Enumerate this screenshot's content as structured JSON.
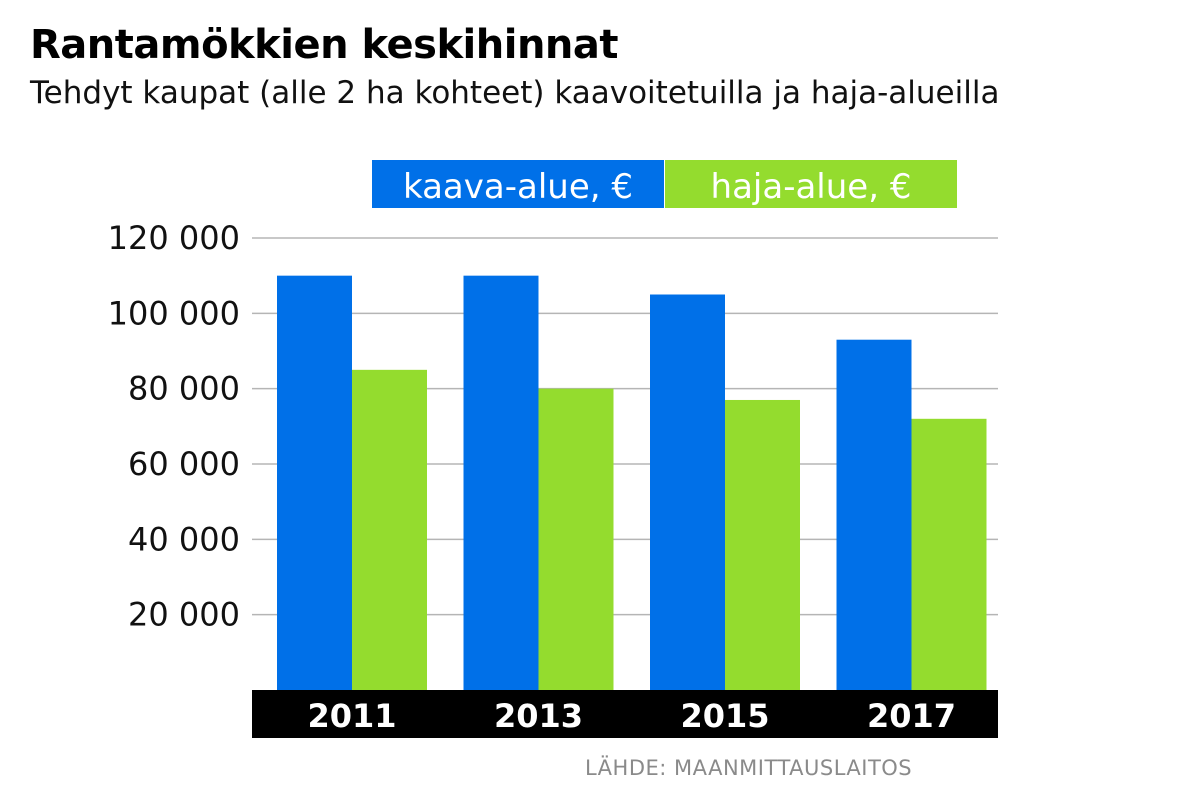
{
  "chart_data": {
    "type": "bar",
    "title": "Rantamökkien keskihinnat",
    "subtitle": "Tehdyt kaupat (alle 2 ha kohteet) kaavoitetuilla ja haja-alueilla",
    "categories": [
      "2011",
      "2013",
      "2015",
      "2017"
    ],
    "series": [
      {
        "name": "kaava-alue, €",
        "color": "#0070e8",
        "values": [
          110000,
          110000,
          105000,
          93000
        ]
      },
      {
        "name": "haja-alue, €",
        "color": "#94dc2e",
        "values": [
          85000,
          80000,
          77000,
          72000
        ]
      }
    ],
    "ylim": [
      0,
      120000
    ],
    "yticks": [
      "20 000",
      "40 000",
      "60 000",
      "80 000",
      "100 000",
      "120 000"
    ],
    "ytick_values": [
      20000,
      40000,
      60000,
      80000,
      100000,
      120000
    ],
    "grid": true,
    "legend_position": "top",
    "source": "LÄHDE: MAANMITTAUSLAITOS"
  }
}
